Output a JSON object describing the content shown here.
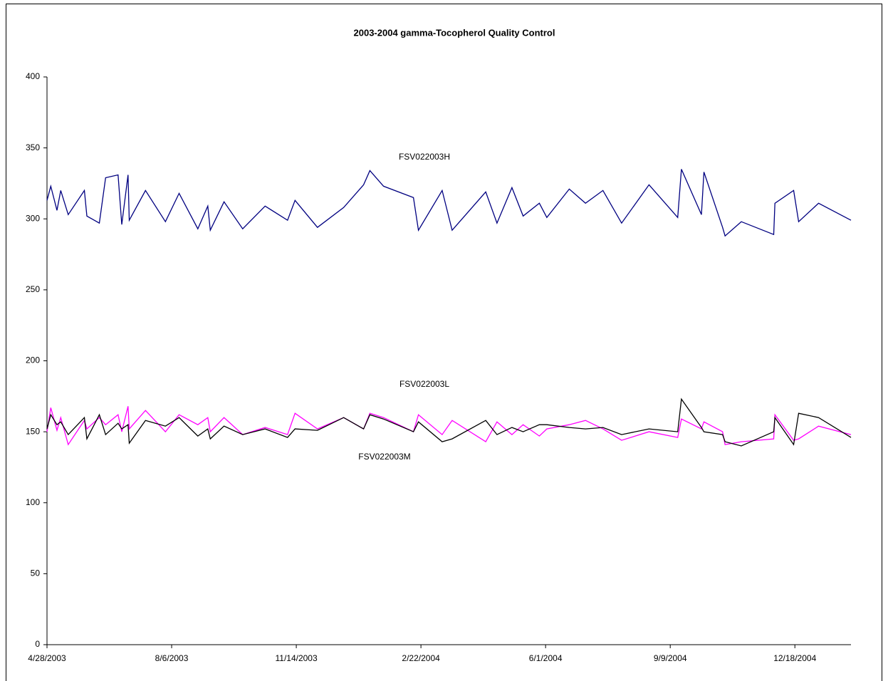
{
  "chart_data": {
    "type": "line",
    "title": "2003-2004 gamma-Tocopherol Quality Control",
    "x": [
      "4/28/2003",
      "5/1/2003",
      "5/6/2003",
      "5/9/2003",
      "5/15/2003",
      "5/28/2003",
      "5/30/2003",
      "6/9/2003",
      "6/14/2003",
      "6/24/2003",
      "6/27/2003",
      "7/2/2003",
      "7/3/2003",
      "7/16/2003",
      "8/1/2003",
      "8/12/2003",
      "8/27/2003",
      "9/4/2003",
      "9/6/2003",
      "9/17/2003",
      "10/2/2003",
      "10/20/2003",
      "11/7/2003",
      "11/13/2003",
      "12/1/2003",
      "12/22/2003",
      "1/7/2004",
      "1/12/2004",
      "1/23/2004",
      "2/16/2004",
      "2/20/2004",
      "3/10/2004",
      "3/18/2004",
      "4/14/2004",
      "4/23/2004",
      "5/5/2004",
      "5/14/2004",
      "5/27/2004",
      "6/2/2004",
      "6/20/2004",
      "7/3/2004",
      "7/17/2004",
      "8/1/2004",
      "8/23/2004",
      "9/15/2004",
      "9/18/2004",
      "10/4/2004",
      "10/6/2004",
      "10/21/2004",
      "10/23/2004",
      "11/5/2004",
      "12/1/2004",
      "12/2/2004",
      "12/17/2004",
      "12/21/2004",
      "1/6/2005",
      "2/1/2005"
    ],
    "series": [
      {
        "name": "FSV022003H",
        "color": "#000080",
        "values": [
          313,
          323,
          306,
          320,
          303,
          320,
          302,
          297,
          329,
          331,
          296,
          331,
          299,
          320,
          298,
          318,
          293,
          309,
          292,
          312,
          293,
          309,
          299,
          313,
          294,
          308,
          324,
          334,
          323,
          315,
          292,
          320,
          292,
          319,
          297,
          322,
          302,
          311,
          301,
          321,
          311,
          320,
          297,
          324,
          301,
          335,
          303,
          333,
          294,
          288,
          298,
          289,
          311,
          320,
          298,
          311,
          299
        ]
      },
      {
        "name": "FSV022003L",
        "color": "#ff00ff",
        "values": [
          150,
          167,
          151,
          160,
          141,
          158,
          152,
          160,
          155,
          162,
          150,
          168,
          152,
          165,
          150,
          162,
          155,
          160,
          150,
          160,
          148,
          153,
          148,
          163,
          152,
          160,
          152,
          163,
          160,
          150,
          162,
          148,
          158,
          143,
          157,
          148,
          155,
          147,
          152,
          155,
          158,
          152,
          144,
          150,
          146,
          159,
          152,
          157,
          150,
          141,
          143,
          145,
          162,
          144,
          145,
          154,
          148
        ]
      },
      {
        "name": "FSV022003M",
        "color": "#000000",
        "values": [
          152,
          162,
          155,
          157,
          148,
          160,
          145,
          162,
          148,
          156,
          152,
          155,
          142,
          158,
          154,
          160,
          147,
          152,
          145,
          154,
          148,
          152,
          146,
          152,
          151,
          160,
          152,
          162,
          159,
          150,
          157,
          143,
          145,
          158,
          148,
          153,
          150,
          155,
          155,
          153,
          152,
          153,
          148,
          152,
          150,
          173,
          153,
          150,
          148,
          143,
          140,
          150,
          160,
          141,
          163,
          160,
          146
        ]
      }
    ],
    "xlim": [
      "4/28/2003",
      "2/1/2005"
    ],
    "xticks": [
      "4/28/2003",
      "8/6/2003",
      "11/14/2003",
      "2/22/2004",
      "6/1/2004",
      "9/9/2004",
      "12/18/2004"
    ],
    "ylim": [
      0,
      400
    ],
    "yticks": [
      0,
      50,
      100,
      150,
      200,
      250,
      300,
      350,
      400
    ],
    "grid": false
  }
}
